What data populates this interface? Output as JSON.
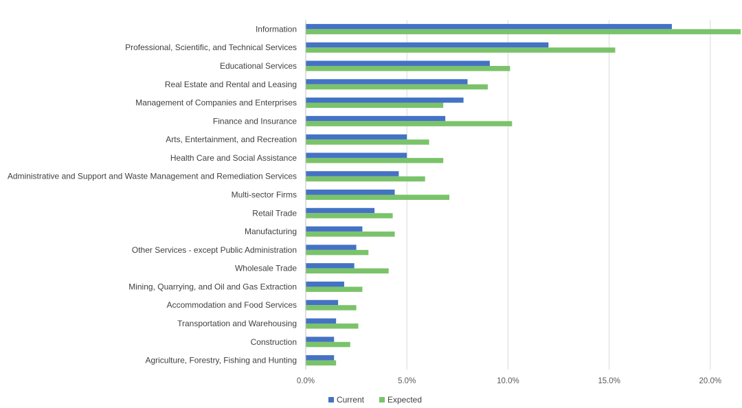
{
  "chart_data": {
    "type": "bar",
    "orientation": "horizontal",
    "categories": [
      "Information",
      "Professional, Scientific, and Technical Services",
      "Educational Services",
      "Real Estate and Rental and Leasing",
      "Management of Companies and Enterprises",
      "Finance and Insurance",
      "Arts, Entertainment, and Recreation",
      "Health Care and Social Assistance",
      "Administrative and Support and Waste Management and Remediation Services",
      "Multi-sector Firms",
      "Retail Trade",
      "Manufacturing",
      "Other Services - except Public Administration",
      "Wholesale Trade",
      "Mining, Quarrying, and Oil and Gas Extraction",
      "Accommodation and Food Services",
      "Transportation and Warehousing",
      "Construction",
      "Agriculture, Forestry, Fishing and Hunting"
    ],
    "series": [
      {
        "name": "Current",
        "color": "#4472C4",
        "values": [
          18.1,
          12.0,
          9.1,
          8.0,
          7.8,
          6.9,
          5.0,
          5.0,
          4.6,
          4.4,
          3.4,
          2.8,
          2.5,
          2.4,
          1.9,
          1.6,
          1.5,
          1.4,
          1.4
        ]
      },
      {
        "name": "Expected",
        "color": "#7AC36A",
        "values": [
          21.5,
          15.3,
          10.1,
          9.0,
          6.8,
          10.2,
          6.1,
          6.8,
          5.9,
          7.1,
          4.3,
          4.4,
          3.1,
          4.1,
          2.8,
          2.5,
          2.6,
          2.2,
          1.5
        ]
      }
    ],
    "xlim": [
      0,
      21.5
    ],
    "xticks": [
      0,
      5,
      10,
      15,
      20
    ],
    "xtick_labels": [
      "0.0%",
      "5.0%",
      "10.0%",
      "15.0%",
      "20.0%"
    ],
    "grid": "vertical",
    "legend_position": "bottom",
    "title": "",
    "xlabel": "",
    "ylabel": ""
  }
}
